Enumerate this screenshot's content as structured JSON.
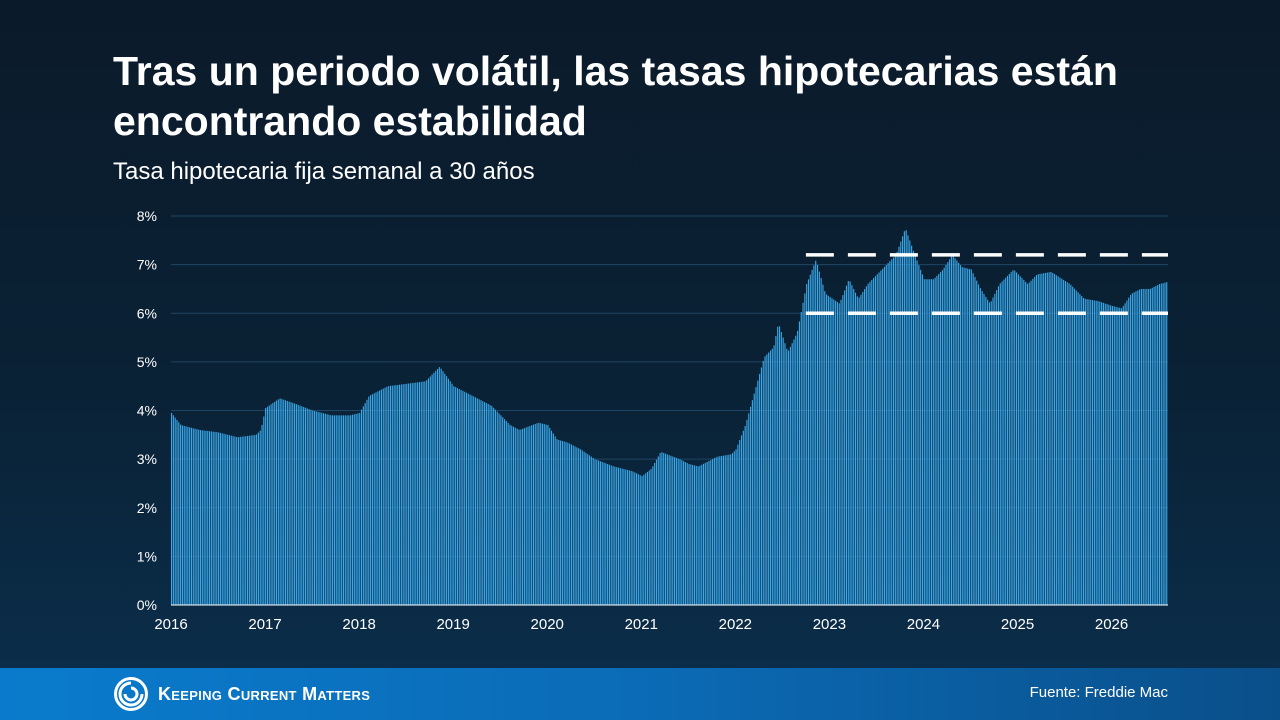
{
  "header": {
    "title": "Tras un periodo volátil, las tasas hipotecarias están encontrando estabilidad",
    "subtitle": "Tasa hipotecaria fija semanal a 30 años"
  },
  "footer": {
    "brand": "Keeping Current Matters",
    "source": "Fuente: Freddie Mac"
  },
  "colors": {
    "bar": "#39a9ec",
    "gridline": "#1f4566",
    "reference_line": "#ffffff"
  },
  "chart_data": {
    "type": "bar",
    "title": "Tasa hipotecaria fija semanal a 30 años",
    "x_tick_labels": [
      "2016",
      "2017",
      "2018",
      "2019",
      "2020",
      "2021",
      "2022",
      "2023",
      "2024",
      "2025",
      "2026"
    ],
    "y_tick_labels": [
      "0%",
      "1%",
      "2%",
      "3%",
      "4%",
      "5%",
      "6%",
      "7%",
      "8%"
    ],
    "ylim": [
      0,
      8
    ],
    "xlim": [
      2016.0,
      2026.6
    ],
    "grid": true,
    "reference_lines": [
      {
        "y": 7.2,
        "x_start": 2022.75,
        "x_end": 2026.6,
        "style": "dashed"
      },
      {
        "y": 6.0,
        "x_start": 2022.75,
        "x_end": 2026.6,
        "style": "dashed"
      }
    ],
    "series": [
      {
        "anchors": [
          [
            2016.0,
            3.95
          ],
          [
            2016.1,
            3.7
          ],
          [
            2016.3,
            3.6
          ],
          [
            2016.5,
            3.55
          ],
          [
            2016.7,
            3.45
          ],
          [
            2016.9,
            3.5
          ],
          [
            2016.95,
            3.6
          ],
          [
            2017.0,
            4.05
          ],
          [
            2017.15,
            4.25
          ],
          [
            2017.3,
            4.15
          ],
          [
            2017.5,
            4.0
          ],
          [
            2017.7,
            3.9
          ],
          [
            2017.9,
            3.9
          ],
          [
            2018.0,
            3.95
          ],
          [
            2018.1,
            4.3
          ],
          [
            2018.3,
            4.5
          ],
          [
            2018.5,
            4.55
          ],
          [
            2018.7,
            4.6
          ],
          [
            2018.85,
            4.9
          ],
          [
            2019.0,
            4.5
          ],
          [
            2019.2,
            4.3
          ],
          [
            2019.4,
            4.1
          ],
          [
            2019.6,
            3.7
          ],
          [
            2019.7,
            3.6
          ],
          [
            2019.9,
            3.75
          ],
          [
            2020.0,
            3.7
          ],
          [
            2020.1,
            3.4
          ],
          [
            2020.2,
            3.35
          ],
          [
            2020.35,
            3.2
          ],
          [
            2020.5,
            3.0
          ],
          [
            2020.7,
            2.85
          ],
          [
            2020.9,
            2.75
          ],
          [
            2021.0,
            2.65
          ],
          [
            2021.1,
            2.8
          ],
          [
            2021.2,
            3.15
          ],
          [
            2021.4,
            3.0
          ],
          [
            2021.5,
            2.9
          ],
          [
            2021.6,
            2.85
          ],
          [
            2021.8,
            3.05
          ],
          [
            2021.95,
            3.1
          ],
          [
            2022.0,
            3.2
          ],
          [
            2022.1,
            3.7
          ],
          [
            2022.2,
            4.4
          ],
          [
            2022.3,
            5.1
          ],
          [
            2022.4,
            5.3
          ],
          [
            2022.45,
            5.8
          ],
          [
            2022.55,
            5.2
          ],
          [
            2022.65,
            5.6
          ],
          [
            2022.75,
            6.6
          ],
          [
            2022.85,
            7.1
          ],
          [
            2022.95,
            6.4
          ],
          [
            2023.1,
            6.2
          ],
          [
            2023.2,
            6.7
          ],
          [
            2023.3,
            6.3
          ],
          [
            2023.4,
            6.6
          ],
          [
            2023.55,
            6.9
          ],
          [
            2023.7,
            7.2
          ],
          [
            2023.8,
            7.75
          ],
          [
            2023.9,
            7.2
          ],
          [
            2024.0,
            6.7
          ],
          [
            2024.1,
            6.7
          ],
          [
            2024.2,
            6.9
          ],
          [
            2024.3,
            7.2
          ],
          [
            2024.4,
            6.95
          ],
          [
            2024.5,
            6.9
          ],
          [
            2024.6,
            6.5
          ],
          [
            2024.7,
            6.2
          ],
          [
            2024.8,
            6.6
          ],
          [
            2024.95,
            6.9
          ],
          [
            2025.1,
            6.6
          ],
          [
            2025.2,
            6.8
          ],
          [
            2025.35,
            6.85
          ],
          [
            2025.55,
            6.6
          ],
          [
            2025.7,
            6.3
          ],
          [
            2025.85,
            6.25
          ],
          [
            2026.0,
            6.15
          ],
          [
            2026.1,
            6.1
          ],
          [
            2026.2,
            6.4
          ],
          [
            2026.3,
            6.5
          ],
          [
            2026.4,
            6.5
          ],
          [
            2026.5,
            6.6
          ],
          [
            2026.6,
            6.65
          ]
        ]
      }
    ]
  }
}
